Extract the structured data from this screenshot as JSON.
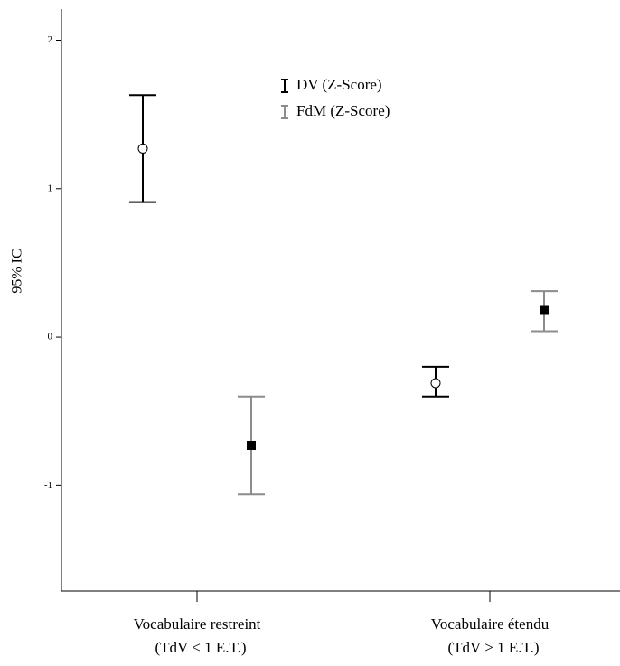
{
  "chart_data": {
    "type": "errorbar",
    "y_label": "95% IC",
    "categories": [
      "Vocabulaire restreint",
      "Vocabulaire étendu"
    ],
    "category_sublabels": [
      "(TdV < 1 E.T.)",
      "(TdV > 1 E.T.)"
    ],
    "series": [
      {
        "name": "DV (Z-Score)",
        "color": "#000000",
        "marker": "open-circle",
        "values": [
          1.27,
          -0.31
        ],
        "lower": [
          0.91,
          -0.4
        ],
        "upper": [
          1.63,
          -0.2
        ]
      },
      {
        "name": "FdM (Z-Score)",
        "color": "#8c8c8c",
        "marker": "filled-square",
        "values": [
          -0.73,
          0.18
        ],
        "lower": [
          -1.06,
          0.04
        ],
        "upper": [
          -0.4,
          0.31
        ]
      }
    ],
    "ylim": [
      -1.71,
      2.21
    ],
    "yticks": [
      -1,
      0,
      1,
      2
    ]
  }
}
